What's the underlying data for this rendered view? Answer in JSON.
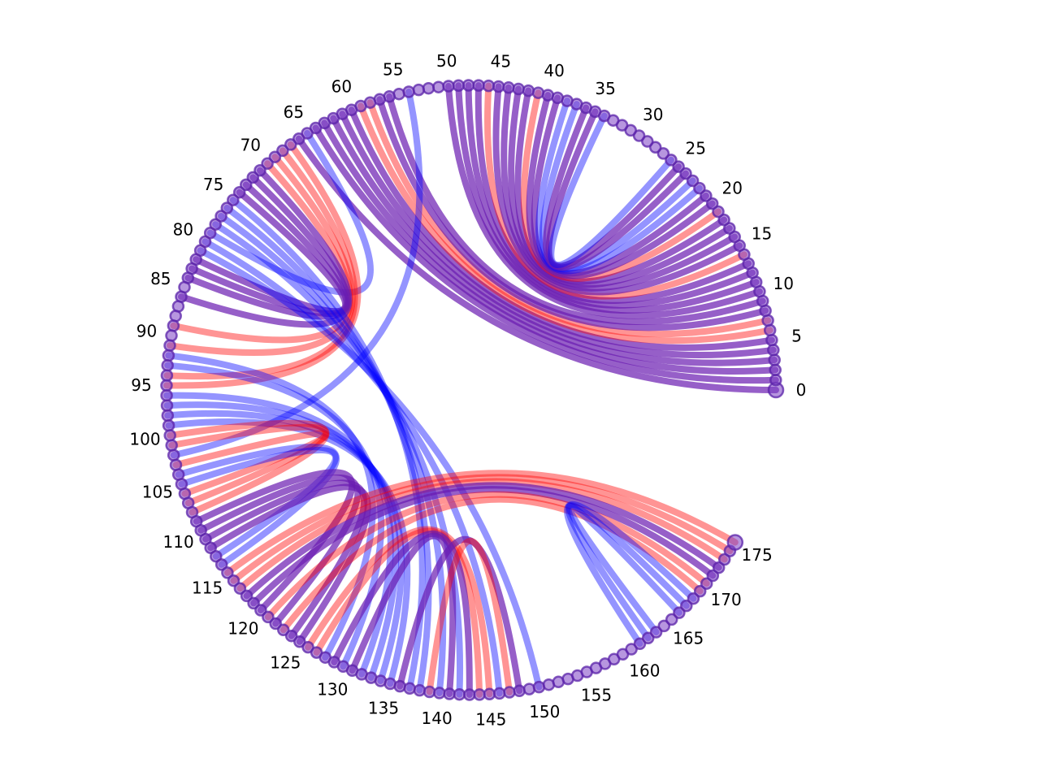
{
  "chart_data": {
    "type": "chord-arc",
    "title": "",
    "node_count": 176,
    "tick_step": 5,
    "tick_labels": [
      "0",
      "5",
      "10",
      "15",
      "20",
      "25",
      "30",
      "35",
      "40",
      "45",
      "50",
      "55",
      "60",
      "65",
      "70",
      "75",
      "80",
      "85",
      "90",
      "95",
      "100",
      "105",
      "110",
      "115",
      "120",
      "125",
      "130",
      "135",
      "140",
      "145",
      "150",
      "155",
      "160",
      "165",
      "170",
      "175"
    ],
    "angle_range_deg": [
      0,
      330
    ],
    "colors": {
      "red": "#ff0000",
      "blue": "#0000ff",
      "purple": "#6a1bb0"
    },
    "links": [
      {
        "a": 0,
        "b": 66,
        "color": "purple"
      },
      {
        "a": 1,
        "b": 64,
        "color": "purple"
      },
      {
        "a": 2,
        "b": 63,
        "color": "purple"
      },
      {
        "a": 3,
        "b": 62,
        "color": "purple"
      },
      {
        "a": 4,
        "b": 61,
        "color": "purple"
      },
      {
        "a": 5,
        "b": 60,
        "color": "purple"
      },
      {
        "a": 6,
        "b": 59,
        "color": "red"
      },
      {
        "a": 7,
        "b": 58,
        "color": "red"
      },
      {
        "a": 8,
        "b": 57,
        "color": "purple"
      },
      {
        "a": 9,
        "b": 56,
        "color": "purple"
      },
      {
        "a": 10,
        "b": 50,
        "color": "purple"
      },
      {
        "a": 11,
        "b": 49,
        "color": "purple"
      },
      {
        "a": 12,
        "b": 48,
        "color": "purple"
      },
      {
        "a": 13,
        "b": 47,
        "color": "purple"
      },
      {
        "a": 14,
        "b": 46,
        "color": "red"
      },
      {
        "a": 15,
        "b": 45,
        "color": "purple"
      },
      {
        "a": 16,
        "b": 44,
        "color": "purple"
      },
      {
        "a": 17,
        "b": 43,
        "color": "purple"
      },
      {
        "a": 18,
        "b": 42,
        "color": "purple"
      },
      {
        "a": 19,
        "b": 41,
        "color": "red"
      },
      {
        "a": 20,
        "b": 40,
        "color": "purple"
      },
      {
        "a": 21,
        "b": 39,
        "color": "purple"
      },
      {
        "a": 22,
        "b": 38,
        "color": "blue"
      },
      {
        "a": 23,
        "b": 37,
        "color": "blue"
      },
      {
        "a": 24,
        "b": 36,
        "color": "purple"
      },
      {
        "a": 25,
        "b": 35,
        "color": "purple"
      },
      {
        "a": 26,
        "b": 34,
        "color": "blue"
      },
      {
        "a": 54,
        "b": 102,
        "color": "blue"
      },
      {
        "a": 65,
        "b": 79,
        "color": "blue"
      },
      {
        "a": 67,
        "b": 95,
        "color": "red"
      },
      {
        "a": 68,
        "b": 94,
        "color": "red"
      },
      {
        "a": 69,
        "b": 91,
        "color": "red"
      },
      {
        "a": 70,
        "b": 89,
        "color": "red"
      },
      {
        "a": 71,
        "b": 86,
        "color": "purple"
      },
      {
        "a": 72,
        "b": 84,
        "color": "purple"
      },
      {
        "a": 73,
        "b": 83,
        "color": "purple"
      },
      {
        "a": 74,
        "b": 82,
        "color": "purple"
      },
      {
        "a": 75,
        "b": 137,
        "color": "blue"
      },
      {
        "a": 76,
        "b": 138,
        "color": "blue"
      },
      {
        "a": 77,
        "b": 140,
        "color": "blue"
      },
      {
        "a": 78,
        "b": 142,
        "color": "blue"
      },
      {
        "a": 80,
        "b": 146,
        "color": "blue"
      },
      {
        "a": 81,
        "b": 150,
        "color": "blue"
      },
      {
        "a": 92,
        "b": 128,
        "color": "blue"
      },
      {
        "a": 93,
        "b": 130,
        "color": "blue"
      },
      {
        "a": 96,
        "b": 132,
        "color": "blue"
      },
      {
        "a": 97,
        "b": 133,
        "color": "blue"
      },
      {
        "a": 98,
        "b": 134,
        "color": "blue"
      },
      {
        "a": 99,
        "b": 135,
        "color": "blue"
      },
      {
        "a": 100,
        "b": 108,
        "color": "red"
      },
      {
        "a": 101,
        "b": 107,
        "color": "red"
      },
      {
        "a": 103,
        "b": 106,
        "color": "red"
      },
      {
        "a": 104,
        "b": 114,
        "color": "blue"
      },
      {
        "a": 105,
        "b": 113,
        "color": "blue"
      },
      {
        "a": 109,
        "b": 120,
        "color": "purple"
      },
      {
        "a": 110,
        "b": 122,
        "color": "purple"
      },
      {
        "a": 111,
        "b": 124,
        "color": "purple"
      },
      {
        "a": 112,
        "b": 125,
        "color": "purple"
      },
      {
        "a": 115,
        "b": 175,
        "color": "red"
      },
      {
        "a": 116,
        "b": 174,
        "color": "red"
      },
      {
        "a": 117,
        "b": 173,
        "color": "red"
      },
      {
        "a": 118,
        "b": 172,
        "color": "purple"
      },
      {
        "a": 119,
        "b": 171,
        "color": "purple"
      },
      {
        "a": 121,
        "b": 170,
        "color": "red"
      },
      {
        "a": 123,
        "b": 169,
        "color": "red"
      },
      {
        "a": 126,
        "b": 145,
        "color": "red"
      },
      {
        "a": 127,
        "b": 144,
        "color": "red"
      },
      {
        "a": 129,
        "b": 143,
        "color": "purple"
      },
      {
        "a": 131,
        "b": 141,
        "color": "purple"
      },
      {
        "a": 136,
        "b": 148,
        "color": "purple"
      },
      {
        "a": 139,
        "b": 147,
        "color": "red"
      },
      {
        "a": 161,
        "b": 168,
        "color": "blue"
      },
      {
        "a": 162,
        "b": 167,
        "color": "blue"
      },
      {
        "a": 163,
        "b": 166,
        "color": "blue"
      }
    ]
  }
}
